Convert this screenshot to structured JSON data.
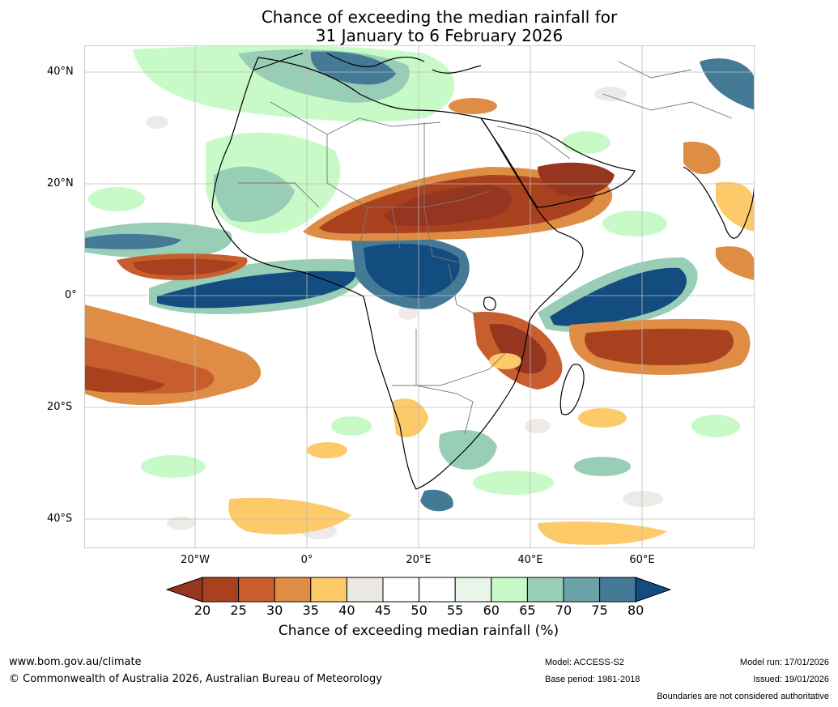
{
  "title": {
    "line1": "Chance of exceeding the median rainfall for",
    "line2": "31 January to 6 February 2026"
  },
  "map": {
    "lat_labels": [
      "40°N",
      "20°N",
      "0°",
      "20°S",
      "40°S"
    ],
    "lon_labels": [
      "20°W",
      "0°",
      "20°E",
      "40°E",
      "60°E"
    ]
  },
  "colorbar": {
    "ticks": [
      "20",
      "25",
      "30",
      "35",
      "40",
      "45",
      "50",
      "55",
      "60",
      "65",
      "70",
      "75",
      "80"
    ],
    "colors": [
      "#a9411f",
      "#c85e2e",
      "#df8c44",
      "#fdca6a",
      "#ebe8e4",
      "#ffffff",
      "#ffffff",
      "#e8f5e8",
      "#c8fac8",
      "#98cdb6",
      "#6aa2a6",
      "#447a96"
    ],
    "under_color": "#973620",
    "over_color": "#134d80",
    "title": "Chance of exceeding median rainfall (%)"
  },
  "footer": {
    "url": "www.bom.gov.au/climate",
    "copyright": "© Commonwealth of Australia 2026, Australian Bureau of Meteorology",
    "model": "Model: ACCESS-S2",
    "base_period": "Base period: 1981-2018",
    "model_run": "Model run: 17/01/2026",
    "issued": "Issued: 19/01/2026",
    "disclaimer": "Boundaries are not considered authoritative"
  }
}
